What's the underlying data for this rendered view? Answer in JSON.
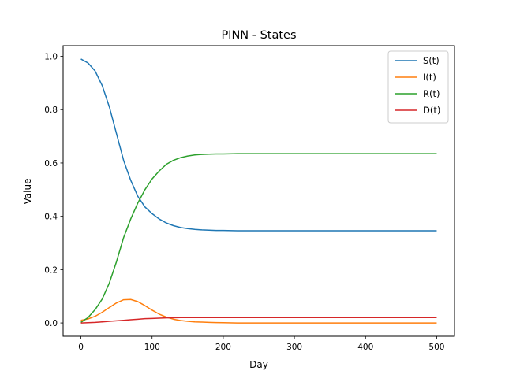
{
  "chart_data": {
    "type": "line",
    "title": "PINN - States",
    "xlabel": "Day",
    "ylabel": "Value",
    "xlim": [
      -25,
      525
    ],
    "ylim": [
      -0.05,
      1.04
    ],
    "xticks": [
      0,
      100,
      200,
      300,
      400,
      500
    ],
    "yticks": [
      0.0,
      0.2,
      0.4,
      0.6,
      0.8,
      1.0
    ],
    "grid": false,
    "legend_position": "top-right",
    "x": [
      0,
      10,
      20,
      30,
      40,
      50,
      60,
      70,
      80,
      90,
      100,
      110,
      120,
      130,
      140,
      150,
      160,
      170,
      180,
      190,
      200,
      220,
      240,
      260,
      280,
      300,
      350,
      400,
      450,
      500
    ],
    "series": [
      {
        "name": "S(t)",
        "color": "#1f77b4",
        "values": [
          0.99,
          0.975,
          0.945,
          0.89,
          0.81,
          0.71,
          0.61,
          0.535,
          0.475,
          0.435,
          0.41,
          0.39,
          0.375,
          0.365,
          0.358,
          0.354,
          0.351,
          0.349,
          0.348,
          0.347,
          0.347,
          0.346,
          0.346,
          0.346,
          0.346,
          0.346,
          0.346,
          0.346,
          0.346,
          0.346
        ]
      },
      {
        "name": "I(t)",
        "color": "#ff7f0e",
        "values": [
          0.01,
          0.015,
          0.025,
          0.04,
          0.058,
          0.075,
          0.087,
          0.088,
          0.08,
          0.065,
          0.048,
          0.033,
          0.022,
          0.014,
          0.009,
          0.006,
          0.004,
          0.003,
          0.002,
          0.0015,
          0.001,
          0.0,
          0.0,
          0.0,
          0.0,
          0.0,
          0.0,
          0.0,
          0.0,
          0.0
        ]
      },
      {
        "name": "R(t)",
        "color": "#2ca02c",
        "values": [
          0.002,
          0.02,
          0.05,
          0.09,
          0.15,
          0.23,
          0.32,
          0.39,
          0.45,
          0.5,
          0.54,
          0.57,
          0.595,
          0.61,
          0.62,
          0.626,
          0.63,
          0.632,
          0.633,
          0.634,
          0.634,
          0.635,
          0.635,
          0.635,
          0.635,
          0.635,
          0.635,
          0.635,
          0.635,
          0.635
        ]
      },
      {
        "name": "D(t)",
        "color": "#d62728",
        "values": [
          0.0,
          0.001,
          0.002,
          0.004,
          0.006,
          0.008,
          0.01,
          0.012,
          0.014,
          0.016,
          0.017,
          0.018,
          0.019,
          0.0195,
          0.02,
          0.02,
          0.02,
          0.02,
          0.02,
          0.02,
          0.02,
          0.02,
          0.02,
          0.02,
          0.02,
          0.02,
          0.02,
          0.02,
          0.02,
          0.02
        ]
      }
    ]
  }
}
